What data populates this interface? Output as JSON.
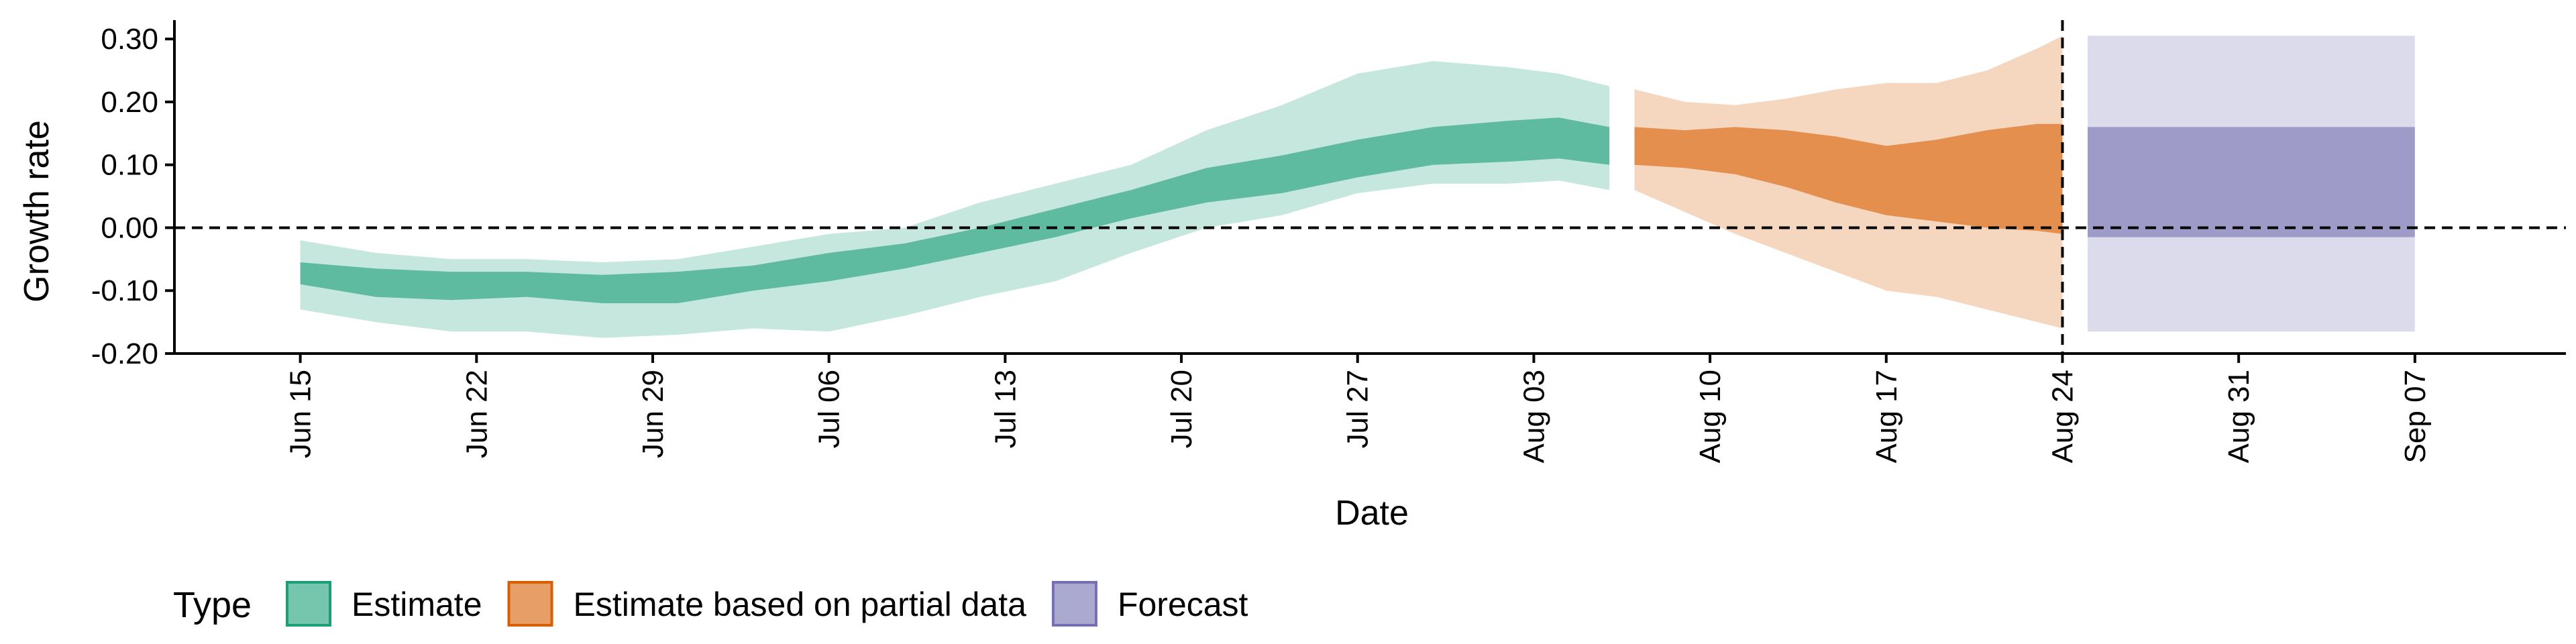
{
  "chart_data": {
    "type": "area",
    "title": "",
    "xlabel": "Date",
    "ylabel": "Growth rate",
    "x_range": [
      "2020-06-10",
      "2020-09-13"
    ],
    "ylim": [
      -0.2,
      0.33
    ],
    "x_ticks": [
      "2020-06-15",
      "2020-06-22",
      "2020-06-29",
      "2020-07-06",
      "2020-07-13",
      "2020-07-20",
      "2020-07-27",
      "2020-08-03",
      "2020-08-10",
      "2020-08-17",
      "2020-08-24",
      "2020-08-31",
      "2020-09-07"
    ],
    "x_tick_labels": [
      "Jun 15",
      "Jun 22",
      "Jun 29",
      "Jul 06",
      "Jul 13",
      "Jul 20",
      "Jul 27",
      "Aug 03",
      "Aug 10",
      "Aug 17",
      "Aug 24",
      "Aug 31",
      "Sep 07"
    ],
    "y_ticks": [
      -0.2,
      -0.1,
      0.0,
      0.1,
      0.2,
      0.3
    ],
    "y_tick_labels": [
      "-0.20",
      "-0.10",
      "0.00",
      "0.10",
      "0.20",
      "0.30"
    ],
    "reference_line_y": 0.0,
    "reference_line_x": "2020-08-24",
    "legend": {
      "title": "Type",
      "position": "bottom-left",
      "entries": [
        "Estimate",
        "Estimate based on partial data",
        "Forecast"
      ]
    },
    "series": [
      {
        "name": "Estimate",
        "color": "#1b9e77",
        "x": [
          "2020-06-15",
          "2020-06-18",
          "2020-06-21",
          "2020-06-24",
          "2020-06-27",
          "2020-06-30",
          "2020-07-03",
          "2020-07-06",
          "2020-07-09",
          "2020-07-12",
          "2020-07-15",
          "2020-07-18",
          "2020-07-21",
          "2020-07-24",
          "2020-07-27",
          "2020-07-30",
          "2020-08-02",
          "2020-08-04",
          "2020-08-06"
        ],
        "outer_upper": [
          -0.02,
          -0.04,
          -0.05,
          -0.05,
          -0.055,
          -0.05,
          -0.03,
          -0.01,
          0.0,
          0.04,
          0.07,
          0.1,
          0.155,
          0.195,
          0.245,
          0.265,
          0.255,
          0.245,
          0.225
        ],
        "inner_upper": [
          -0.055,
          -0.065,
          -0.07,
          -0.07,
          -0.075,
          -0.07,
          -0.06,
          -0.04,
          -0.025,
          0.0,
          0.03,
          0.06,
          0.095,
          0.115,
          0.14,
          0.16,
          0.17,
          0.175,
          0.16
        ],
        "inner_lower": [
          -0.09,
          -0.11,
          -0.115,
          -0.11,
          -0.12,
          -0.12,
          -0.1,
          -0.085,
          -0.065,
          -0.04,
          -0.015,
          0.015,
          0.04,
          0.055,
          0.08,
          0.1,
          0.105,
          0.11,
          0.1
        ],
        "outer_lower": [
          -0.13,
          -0.15,
          -0.165,
          -0.165,
          -0.175,
          -0.17,
          -0.16,
          -0.165,
          -0.14,
          -0.11,
          -0.085,
          -0.04,
          0.0,
          0.02,
          0.055,
          0.07,
          0.07,
          0.075,
          0.06
        ]
      },
      {
        "name": "Estimate based on partial data",
        "color": "#d95f02",
        "x": [
          "2020-08-07",
          "2020-08-09",
          "2020-08-11",
          "2020-08-13",
          "2020-08-15",
          "2020-08-17",
          "2020-08-19",
          "2020-08-21",
          "2020-08-23",
          "2020-08-24"
        ],
        "outer_upper": [
          0.22,
          0.2,
          0.195,
          0.205,
          0.22,
          0.23,
          0.23,
          0.25,
          0.285,
          0.305
        ],
        "inner_upper": [
          0.16,
          0.155,
          0.16,
          0.155,
          0.145,
          0.13,
          0.14,
          0.155,
          0.165,
          0.165
        ],
        "inner_lower": [
          0.1,
          0.095,
          0.085,
          0.065,
          0.04,
          0.02,
          0.01,
          0.0,
          -0.005,
          -0.01
        ],
        "outer_lower": [
          0.06,
          0.025,
          -0.01,
          -0.04,
          -0.07,
          -0.1,
          -0.11,
          -0.13,
          -0.15,
          -0.16
        ]
      },
      {
        "name": "Forecast",
        "color": "#7570b3",
        "x": [
          "2020-08-25",
          "2020-09-07"
        ],
        "outer_upper": [
          0.305,
          0.305
        ],
        "inner_upper": [
          0.16,
          0.16
        ],
        "inner_lower": [
          -0.015,
          -0.015
        ],
        "outer_lower": [
          -0.165,
          -0.165
        ]
      }
    ]
  }
}
